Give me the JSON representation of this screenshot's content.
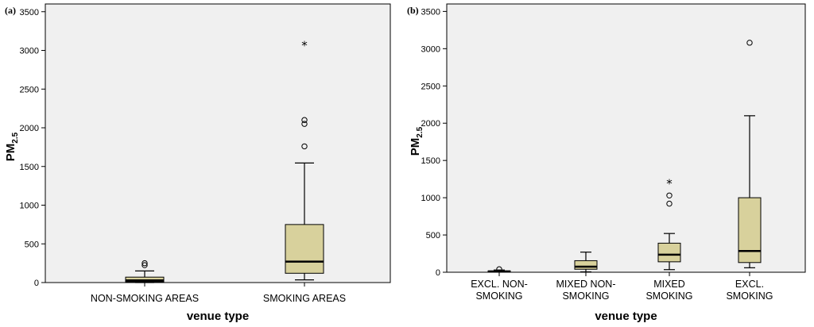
{
  "colors": {
    "plot_bg": "#f0f0f0",
    "box_fill": "#d8d19c",
    "stroke": "#000000"
  },
  "chart_data": [
    {
      "type": "boxplot",
      "panel_label": "(a)",
      "xlabel": "venue type",
      "ylabel_main": "PM",
      "ylabel_sub": "2.5",
      "ylim": [
        0,
        3600
      ],
      "yticks": [
        0,
        500,
        1000,
        1500,
        2000,
        2500,
        3000,
        3500
      ],
      "categories": [
        {
          "label_lines": [
            "NON-SMOKING AREAS"
          ],
          "whisker_low": 0,
          "q1": 10,
          "median": 28,
          "q3": 70,
          "whisker_high": 150,
          "outliers": [
            225,
            250
          ],
          "extremes": []
        },
        {
          "label_lines": [
            "SMOKING AREAS"
          ],
          "whisker_low": 35,
          "q1": 120,
          "median": 270,
          "q3": 750,
          "whisker_high": 1545,
          "outliers": [
            1760,
            2050,
            2100
          ],
          "extremes": [
            3080
          ]
        }
      ]
    },
    {
      "type": "boxplot",
      "panel_label": "(b)",
      "xlabel": "venue type",
      "ylabel_main": "PM",
      "ylabel_sub": "2.5",
      "ylim": [
        0,
        3600
      ],
      "yticks": [
        0,
        500,
        1000,
        1500,
        2000,
        2500,
        3000,
        3500
      ],
      "categories": [
        {
          "label_lines": [
            "EXCL. NON-",
            "SMOKING"
          ],
          "whisker_low": 2,
          "q1": 5,
          "median": 10,
          "q3": 18,
          "whisker_high": 30,
          "outliers": [
            40
          ],
          "extremes": []
        },
        {
          "label_lines": [
            "MIXED NON-",
            "SMOKING"
          ],
          "whisker_low": 5,
          "q1": 40,
          "median": 75,
          "q3": 155,
          "whisker_high": 270,
          "outliers": [],
          "extremes": []
        },
        {
          "label_lines": [
            "MIXED",
            "SMOKING"
          ],
          "whisker_low": 35,
          "q1": 140,
          "median": 235,
          "q3": 390,
          "whisker_high": 520,
          "outliers": [
            920,
            1030
          ],
          "extremes": [
            1210
          ]
        },
        {
          "label_lines": [
            "EXCL.",
            "SMOKING"
          ],
          "whisker_low": 60,
          "q1": 130,
          "median": 285,
          "q3": 1000,
          "whisker_high": 2100,
          "outliers": [
            3080
          ],
          "extremes": []
        }
      ]
    }
  ]
}
